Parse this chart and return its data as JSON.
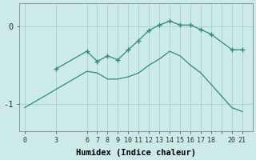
{
  "xlabel": "Humidex (Indice chaleur)",
  "background_color": "#cceae7",
  "grid_color": "#aad4d0",
  "line_color": "#2e8b7a",
  "xtick_labels": [
    "0",
    "3",
    "6",
    "7",
    "8",
    "9",
    "10",
    "11",
    "12",
    "13",
    "14",
    "15",
    "16",
    "17",
    "18",
    "",
    "20",
    "21"
  ],
  "xtick_positions": [
    0,
    3,
    6,
    7,
    8,
    9,
    10,
    11,
    12,
    13,
    14,
    15,
    16,
    17,
    18,
    19,
    20,
    21
  ],
  "ytick_labels": [
    "0",
    "-1"
  ],
  "ytick_positions": [
    0,
    -1
  ],
  "ylim": [
    -1.35,
    0.3
  ],
  "xlim": [
    -0.5,
    22
  ],
  "line1_x": [
    3,
    6,
    7,
    8,
    9,
    10,
    11,
    12,
    13,
    14,
    15,
    16,
    17,
    18,
    20,
    21
  ],
  "line1_y": [
    -0.55,
    -0.32,
    -0.45,
    -0.38,
    -0.43,
    -0.3,
    -0.18,
    -0.05,
    0.02,
    0.07,
    0.02,
    0.02,
    -0.04,
    -0.1,
    -0.3,
    -0.3
  ],
  "line2_x": [
    0,
    6,
    7,
    8,
    9,
    10,
    11,
    12,
    13,
    14,
    15,
    16,
    17,
    18,
    20,
    21
  ],
  "line2_y": [
    -1.05,
    -0.58,
    -0.6,
    -0.68,
    -0.68,
    -0.65,
    -0.6,
    -0.5,
    -0.42,
    -0.32,
    -0.38,
    -0.5,
    -0.6,
    -0.75,
    -1.05,
    -1.1
  ],
  "marker": "+"
}
